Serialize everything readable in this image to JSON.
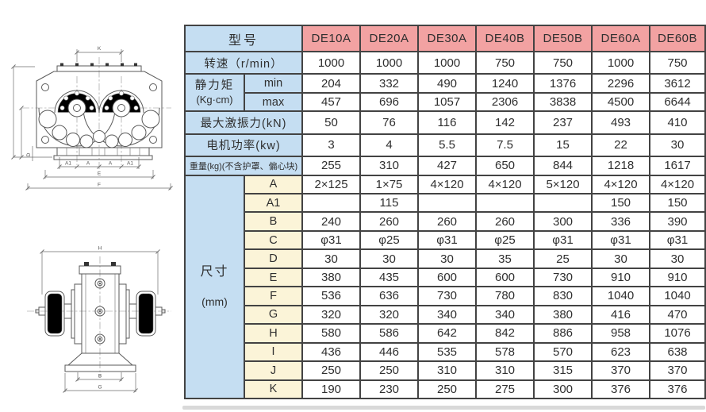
{
  "table": {
    "model_header_label": "型号",
    "models": [
      "DE10A",
      "DE20A",
      "DE30A",
      "DE40B",
      "DE50B",
      "DE60A",
      "DE60B"
    ],
    "rows": [
      {
        "label": "转速（r/min）",
        "values": [
          "1000",
          "1000",
          "1000",
          "750",
          "750",
          "1000",
          "750"
        ]
      },
      {
        "group_label": "静力矩",
        "group_label2": "(Kg·cm)",
        "group_span": 2,
        "sublabel": "min",
        "sub_bg": "blue",
        "values": [
          "204",
          "332",
          "490",
          "1240",
          "1376",
          "2296",
          "3612"
        ]
      },
      {
        "sublabel": "max",
        "sub_bg": "blue",
        "values": [
          "457",
          "696",
          "1057",
          "2306",
          "3838",
          "4500",
          "6644"
        ]
      },
      {
        "label": "最大激振力(kN)",
        "values": [
          "50",
          "76",
          "116",
          "142",
          "237",
          "493",
          "410"
        ]
      },
      {
        "label": "电机功率(kw)",
        "values": [
          "3",
          "4",
          "5.5",
          "7.5",
          "15",
          "22",
          "30"
        ]
      },
      {
        "label": "重量(kg)(不含护罩、偏心块)",
        "small": true,
        "values": [
          "255",
          "310",
          "427",
          "650",
          "844",
          "1218",
          "1617"
        ]
      },
      {
        "group_label": "尺寸",
        "group_label2": "(mm)",
        "group_span": 12,
        "sublabel": "A",
        "sub_bg": "cream",
        "values": [
          "2×125",
          "1×75",
          "4×120",
          "4×120",
          "5×120",
          "4×120",
          "4×120"
        ]
      },
      {
        "sublabel": "A1",
        "sub_bg": "cream",
        "values": [
          "",
          "115",
          "",
          "",
          "",
          "150",
          "150"
        ]
      },
      {
        "sublabel": "B",
        "sub_bg": "cream",
        "values": [
          "240",
          "260",
          "260",
          "260",
          "300",
          "336",
          "390"
        ]
      },
      {
        "sublabel": "C",
        "sub_bg": "cream",
        "values": [
          "φ31",
          "φ25",
          "φ31",
          "φ25",
          "φ31",
          "φ31",
          "φ31"
        ]
      },
      {
        "sublabel": "D",
        "sub_bg": "cream",
        "values": [
          "30",
          "30",
          "30",
          "35",
          "25",
          "30",
          "30"
        ]
      },
      {
        "sublabel": "E",
        "sub_bg": "cream",
        "values": [
          "380",
          "435",
          "600",
          "600",
          "730",
          "910",
          "910"
        ]
      },
      {
        "sublabel": "F",
        "sub_bg": "cream",
        "values": [
          "536",
          "636",
          "730",
          "780",
          "830",
          "1040",
          "1040"
        ]
      },
      {
        "sublabel": "G",
        "sub_bg": "cream",
        "values": [
          "320",
          "320",
          "340",
          "340",
          "380",
          "416",
          "470"
        ]
      },
      {
        "sublabel": "H",
        "sub_bg": "cream",
        "values": [
          "580",
          "586",
          "642",
          "842",
          "886",
          "958",
          "1076"
        ]
      },
      {
        "sublabel": "I",
        "sub_bg": "cream",
        "values": [
          "436",
          "446",
          "535",
          "578",
          "570",
          "623",
          "638"
        ]
      },
      {
        "sublabel": "J",
        "sub_bg": "cream",
        "values": [
          "250",
          "250",
          "310",
          "310",
          "315",
          "370",
          "370"
        ]
      },
      {
        "sublabel": "K",
        "sub_bg": "cream",
        "values": [
          "190",
          "230",
          "250",
          "275",
          "300",
          "376",
          "376"
        ]
      }
    ]
  },
  "colors": {
    "header_pink": "#f2a2a2",
    "label_blue": "#c5def2",
    "dim_cream": "#fbf4d8",
    "grid_border": "#434343"
  },
  "drawings": {
    "front_view": {
      "dims": {
        "k": "K",
        "d": "D",
        "a1": "A1",
        "a": "A",
        "e": "E",
        "f": "F"
      }
    },
    "side_view": {
      "dims": {
        "h": "H",
        "b": "B",
        "g": "G"
      }
    }
  }
}
